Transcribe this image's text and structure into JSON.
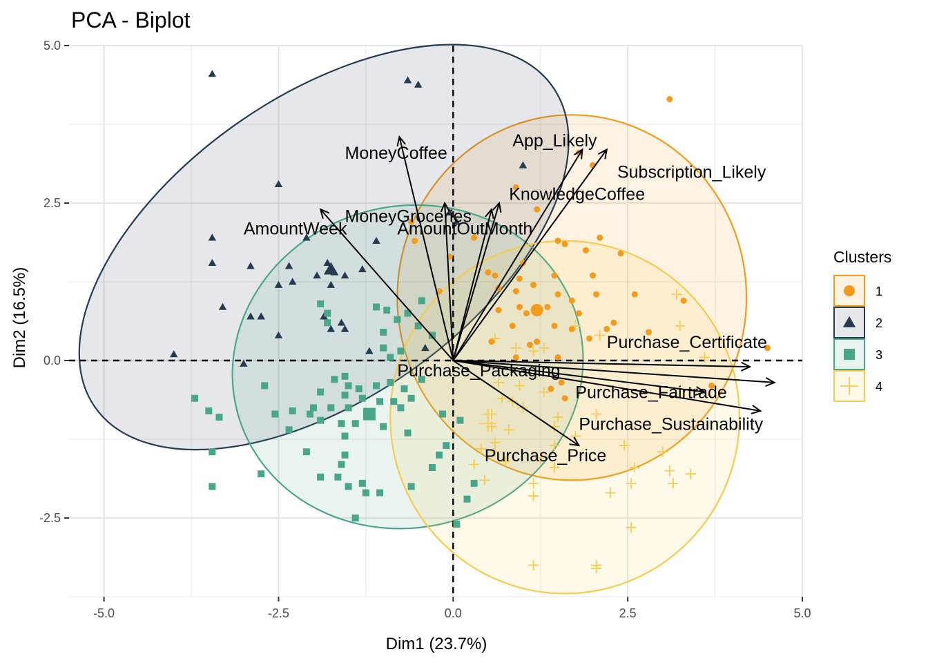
{
  "chart_data": {
    "type": "scatter",
    "title": "PCA - Biplot",
    "xlabel": "Dim1 (23.7%)",
    "ylabel": "Dim2 (16.5%)",
    "xlim": [
      -5.5,
      5.0
    ],
    "ylim": [
      -3.75,
      5.0
    ],
    "xticks": [
      -5.0,
      -2.5,
      0.0,
      2.5,
      5.0
    ],
    "xtick_labels": [
      "-5.0",
      "-2.5",
      "0.0",
      "2.5",
      "5.0"
    ],
    "yticks": [
      -2.5,
      0.0,
      2.5,
      5.0
    ],
    "ytick_labels": [
      "-2.5",
      "0.0",
      "2.5",
      "5.0"
    ],
    "grid": true,
    "legend": {
      "title": "Clusters",
      "position": "right",
      "entries": [
        "1",
        "2",
        "3",
        "4"
      ]
    },
    "colors": {
      "1": "#F39B1A",
      "2": "#263A50",
      "3": "#4AA68B",
      "4": "#F6CB4E"
    },
    "series": [
      {
        "name": "1",
        "shape": "circle",
        "centroid": [
          1.2,
          0.8
        ],
        "ellipse": {
          "cx": 1.7,
          "cy": 1.0,
          "rx": 2.5,
          "ry": 2.9,
          "angle": 0
        },
        "points": [
          [
            3.1,
            4.15
          ],
          [
            2.0,
            3.1
          ],
          [
            1.8,
            3.3
          ],
          [
            0.9,
            2.75
          ],
          [
            1.2,
            2.4
          ],
          [
            -0.6,
            2.2
          ],
          [
            -0.55,
            1.9
          ],
          [
            0.3,
            1.95
          ],
          [
            1.5,
            1.9
          ],
          [
            2.1,
            1.95
          ],
          [
            1.6,
            1.85
          ],
          [
            1.9,
            1.75
          ],
          [
            2.4,
            1.7
          ],
          [
            1.0,
            1.55
          ],
          [
            -0.05,
            1.65
          ],
          [
            0.5,
            1.4
          ],
          [
            0.6,
            1.35
          ],
          [
            0.95,
            1.3
          ],
          [
            1.45,
            1.35
          ],
          [
            2.0,
            1.35
          ],
          [
            0.65,
            1.15
          ],
          [
            1.15,
            1.2
          ],
          [
            0.9,
            1.1
          ],
          [
            1.5,
            1.05
          ],
          [
            2.05,
            1.05
          ],
          [
            2.6,
            1.05
          ],
          [
            -0.2,
            1.1
          ],
          [
            1.7,
            0.95
          ],
          [
            0.95,
            0.85
          ],
          [
            1.35,
            0.85
          ],
          [
            0.65,
            0.8
          ],
          [
            1.8,
            0.75
          ],
          [
            1.05,
            0.75
          ],
          [
            2.3,
            0.6
          ],
          [
            1.45,
            0.55
          ],
          [
            1.7,
            0.5
          ],
          [
            0.85,
            0.55
          ],
          [
            2.2,
            0.5
          ],
          [
            1.95,
            0.35
          ],
          [
            0.55,
            0.3
          ],
          [
            1.2,
            0.3
          ],
          [
            2.8,
            0.45
          ],
          [
            3.3,
            0.95
          ],
          [
            4.5,
            0.2
          ],
          [
            1.1,
            0.25
          ],
          [
            0.9,
            0.05
          ],
          [
            1.5,
            0.05
          ],
          [
            3.7,
            -0.4
          ],
          [
            1.6,
            -0.6
          ],
          [
            1.4,
            -0.45
          ],
          [
            1.55,
            -0.35
          ]
        ]
      },
      {
        "name": "2",
        "shape": "triangle",
        "centroid": [
          -1.75,
          1.45
        ],
        "ellipse": {
          "cx": -1.85,
          "cy": 1.8,
          "rx": 4.0,
          "ry": 2.4,
          "angle": 35
        },
        "points": [
          [
            -3.45,
            4.55
          ],
          [
            -0.65,
            4.45
          ],
          [
            -0.5,
            4.38
          ],
          [
            1.0,
            3.1
          ],
          [
            -2.5,
            2.8
          ],
          [
            -3.45,
            1.95
          ],
          [
            -2.1,
            1.95
          ],
          [
            -0.05,
            2.35
          ],
          [
            0.05,
            2.2
          ],
          [
            -3.45,
            1.55
          ],
          [
            -2.9,
            1.5
          ],
          [
            -2.35,
            1.5
          ],
          [
            -1.8,
            1.55
          ],
          [
            -1.7,
            1.4
          ],
          [
            -2.3,
            1.25
          ],
          [
            -2.5,
            1.2
          ],
          [
            -1.95,
            1.35
          ],
          [
            -1.55,
            1.35
          ],
          [
            -1.3,
            1.45
          ],
          [
            -1.75,
            1.2
          ],
          [
            -1.1,
            1.9
          ],
          [
            -3.3,
            0.85
          ],
          [
            -2.9,
            0.7
          ],
          [
            -2.75,
            0.7
          ],
          [
            -1.85,
            0.7
          ],
          [
            -1.6,
            0.6
          ],
          [
            -1.75,
            0.5
          ],
          [
            -2.5,
            0.4
          ],
          [
            -4.0,
            0.1
          ],
          [
            -3.0,
            -0.05
          ],
          [
            -1.55,
            0.5
          ],
          [
            -1.2,
            0.15
          ],
          [
            -0.4,
            0.2
          ]
        ]
      },
      {
        "name": "3",
        "shape": "square",
        "centroid": [
          -1.2,
          -0.85
        ],
        "ellipse": {
          "cx": -0.65,
          "cy": -0.1,
          "rx": 2.3,
          "ry": 2.8,
          "angle": -75
        },
        "points": [
          [
            -1.9,
            0.9
          ],
          [
            -1.8,
            0.75
          ],
          [
            -0.95,
            0.8
          ],
          [
            -0.65,
            0.75
          ],
          [
            -1.8,
            0.6
          ],
          [
            -1.1,
            0.85
          ],
          [
            -0.45,
            0.95
          ],
          [
            -0.8,
            0.65
          ],
          [
            -1.0,
            0.45
          ],
          [
            -0.5,
            0.55
          ],
          [
            -0.3,
            0.4
          ],
          [
            -1.0,
            0.2
          ],
          [
            -0.75,
            0.15
          ],
          [
            -0.9,
            0.05
          ],
          [
            -1.55,
            -0.25
          ],
          [
            -1.7,
            -0.3
          ],
          [
            -1.5,
            -0.4
          ],
          [
            -1.35,
            -0.45
          ],
          [
            -1.1,
            -0.4
          ],
          [
            -0.9,
            -0.35
          ],
          [
            -0.7,
            -0.45
          ],
          [
            -0.45,
            -0.3
          ],
          [
            -2.7,
            -0.4
          ],
          [
            -1.9,
            -0.5
          ],
          [
            -1.55,
            -0.55
          ],
          [
            -1.3,
            -0.6
          ],
          [
            -1.05,
            -0.65
          ],
          [
            -0.85,
            -0.65
          ],
          [
            -0.6,
            -0.6
          ],
          [
            -3.7,
            -0.6
          ],
          [
            -2.0,
            -0.75
          ],
          [
            -1.75,
            -0.75
          ],
          [
            -1.5,
            -0.75
          ],
          [
            -0.75,
            -0.75
          ],
          [
            -3.5,
            -0.8
          ],
          [
            -3.35,
            -0.9
          ],
          [
            -2.55,
            -0.85
          ],
          [
            -2.3,
            -0.8
          ],
          [
            -2.05,
            -0.85
          ],
          [
            -1.9,
            -0.95
          ],
          [
            -1.6,
            -1.0
          ],
          [
            -1.4,
            -1.0
          ],
          [
            -1.0,
            -1.05
          ],
          [
            -0.65,
            -1.15
          ],
          [
            -2.35,
            -1.1
          ],
          [
            -1.55,
            -1.2
          ],
          [
            -0.15,
            -0.85
          ],
          [
            0.1,
            -0.95
          ],
          [
            -3.45,
            -1.45
          ],
          [
            -1.55,
            -1.5
          ],
          [
            -2.1,
            -1.45
          ],
          [
            -1.6,
            -1.65
          ],
          [
            -2.75,
            -1.8
          ],
          [
            -1.9,
            -1.85
          ],
          [
            -1.65,
            -1.85
          ],
          [
            0.3,
            -1.95
          ],
          [
            -1.3,
            -1.95
          ],
          [
            -0.2,
            -1.5
          ],
          [
            -1.5,
            -2.0
          ],
          [
            -1.25,
            -2.1
          ],
          [
            -1.05,
            -2.1
          ],
          [
            -3.45,
            -2.0
          ],
          [
            -0.6,
            -2.0
          ],
          [
            0.2,
            -2.2
          ],
          [
            -1.4,
            -2.5
          ],
          [
            0.05,
            -2.6
          ],
          [
            -0.3,
            -1.7
          ],
          [
            -0.1,
            -1.35
          ]
        ]
      },
      {
        "name": "4",
        "shape": "plus",
        "centroid": [
          0.5,
          -1.0
        ],
        "ellipse": {
          "cx": 1.6,
          "cy": -0.9,
          "rx": 2.5,
          "ry": 2.8,
          "angle": 0
        },
        "points": [
          [
            3.2,
            1.05
          ],
          [
            3.25,
            0.55
          ],
          [
            1.75,
            0.55
          ],
          [
            2.1,
            0.4
          ],
          [
            0.6,
            0.35
          ],
          [
            0.9,
            0.2
          ],
          [
            1.15,
            0.15
          ],
          [
            1.3,
            0.2
          ],
          [
            3.6,
            0.05
          ],
          [
            0.65,
            -0.35
          ],
          [
            0.95,
            -0.4
          ],
          [
            1.3,
            -0.5
          ],
          [
            0.7,
            -0.6
          ],
          [
            0.85,
            -0.65
          ],
          [
            1.0,
            -0.75
          ],
          [
            0.55,
            -0.85
          ],
          [
            1.5,
            -0.9
          ],
          [
            2.05,
            -0.85
          ],
          [
            1.45,
            -1.05
          ],
          [
            0.55,
            -1.05
          ],
          [
            0.8,
            -1.1
          ],
          [
            0.6,
            -1.3
          ],
          [
            1.75,
            -1.2
          ],
          [
            1.45,
            -1.35
          ],
          [
            0.4,
            -1.4
          ],
          [
            0.6,
            -1.45
          ],
          [
            2.45,
            -1.35
          ],
          [
            3.0,
            -1.45
          ],
          [
            0.3,
            -1.65
          ],
          [
            0.75,
            -1.6
          ],
          [
            1.25,
            -1.55
          ],
          [
            1.45,
            -1.7
          ],
          [
            2.6,
            -1.7
          ],
          [
            3.1,
            -1.75
          ],
          [
            3.15,
            -1.95
          ],
          [
            0.45,
            -1.9
          ],
          [
            1.15,
            -1.95
          ],
          [
            2.55,
            -1.95
          ],
          [
            2.25,
            -2.1
          ],
          [
            3.4,
            -1.8
          ],
          [
            1.15,
            -2.15
          ],
          [
            2.55,
            -2.65
          ],
          [
            1.15,
            -3.25
          ],
          [
            2.05,
            -3.25
          ],
          [
            2.05,
            -3.3
          ],
          [
            0.5,
            -0.85
          ]
        ]
      }
    ],
    "variables": [
      {
        "name": "MoneyCoffee",
        "x": -0.77,
        "y": 3.55
      },
      {
        "name": "MoneyGroceries",
        "x": -0.12,
        "y": 2.5
      },
      {
        "name": "AmountWeek",
        "x": -1.9,
        "y": 2.4
      },
      {
        "name": "AmountOutMonth",
        "x": 0.55,
        "y": 2.4
      },
      {
        "name": "KnowledgeCoffee",
        "x": 0.66,
        "y": 2.5
      },
      {
        "name": "App_Likely",
        "x": 1.85,
        "y": 3.35
      },
      {
        "name": "Subscription_Likely",
        "x": 2.2,
        "y": 3.35
      },
      {
        "name": "Purchase_Certificate",
        "x": 4.25,
        "y": -0.1
      },
      {
        "name": "Purchase_Packaging",
        "x": 4.6,
        "y": -0.35
      },
      {
        "name": "Purchase_Fairtrade",
        "x": 4.4,
        "y": -0.8
      },
      {
        "name": "Purchase_Sustainability",
        "x": 3.6,
        "y": -0.5
      },
      {
        "name": "Purchase_Price",
        "x": 1.8,
        "y": -1.35
      }
    ],
    "variable_labels": [
      {
        "text": "MoneyCoffee",
        "x": -1.55,
        "y": 3.2
      },
      {
        "text": "MoneyGroceries",
        "x": -1.55,
        "y": 2.2
      },
      {
        "text": "AmountWeek",
        "x": -3.0,
        "y": 2.0
      },
      {
        "text": "AmountOutMonth",
        "x": -0.8,
        "y": 2.0
      },
      {
        "text": "KnowledgeCoffee",
        "x": 0.8,
        "y": 2.55
      },
      {
        "text": "App_Likely",
        "x": 0.85,
        "y": 3.4
      },
      {
        "text": "Subscription_Likely",
        "x": 2.35,
        "y": 2.9
      },
      {
        "text": "Purchase_Certificate",
        "x": 2.2,
        "y": 0.2
      },
      {
        "text": "Purchase_Packaging",
        "x": -0.8,
        "y": -0.25
      },
      {
        "text": "Purchase_Fairtrade",
        "x": 1.75,
        "y": -0.6
      },
      {
        "text": "Purchase_Sustainability",
        "x": 1.8,
        "y": -1.1
      },
      {
        "text": "Purchase_Price",
        "x": 0.45,
        "y": -1.6
      }
    ]
  }
}
